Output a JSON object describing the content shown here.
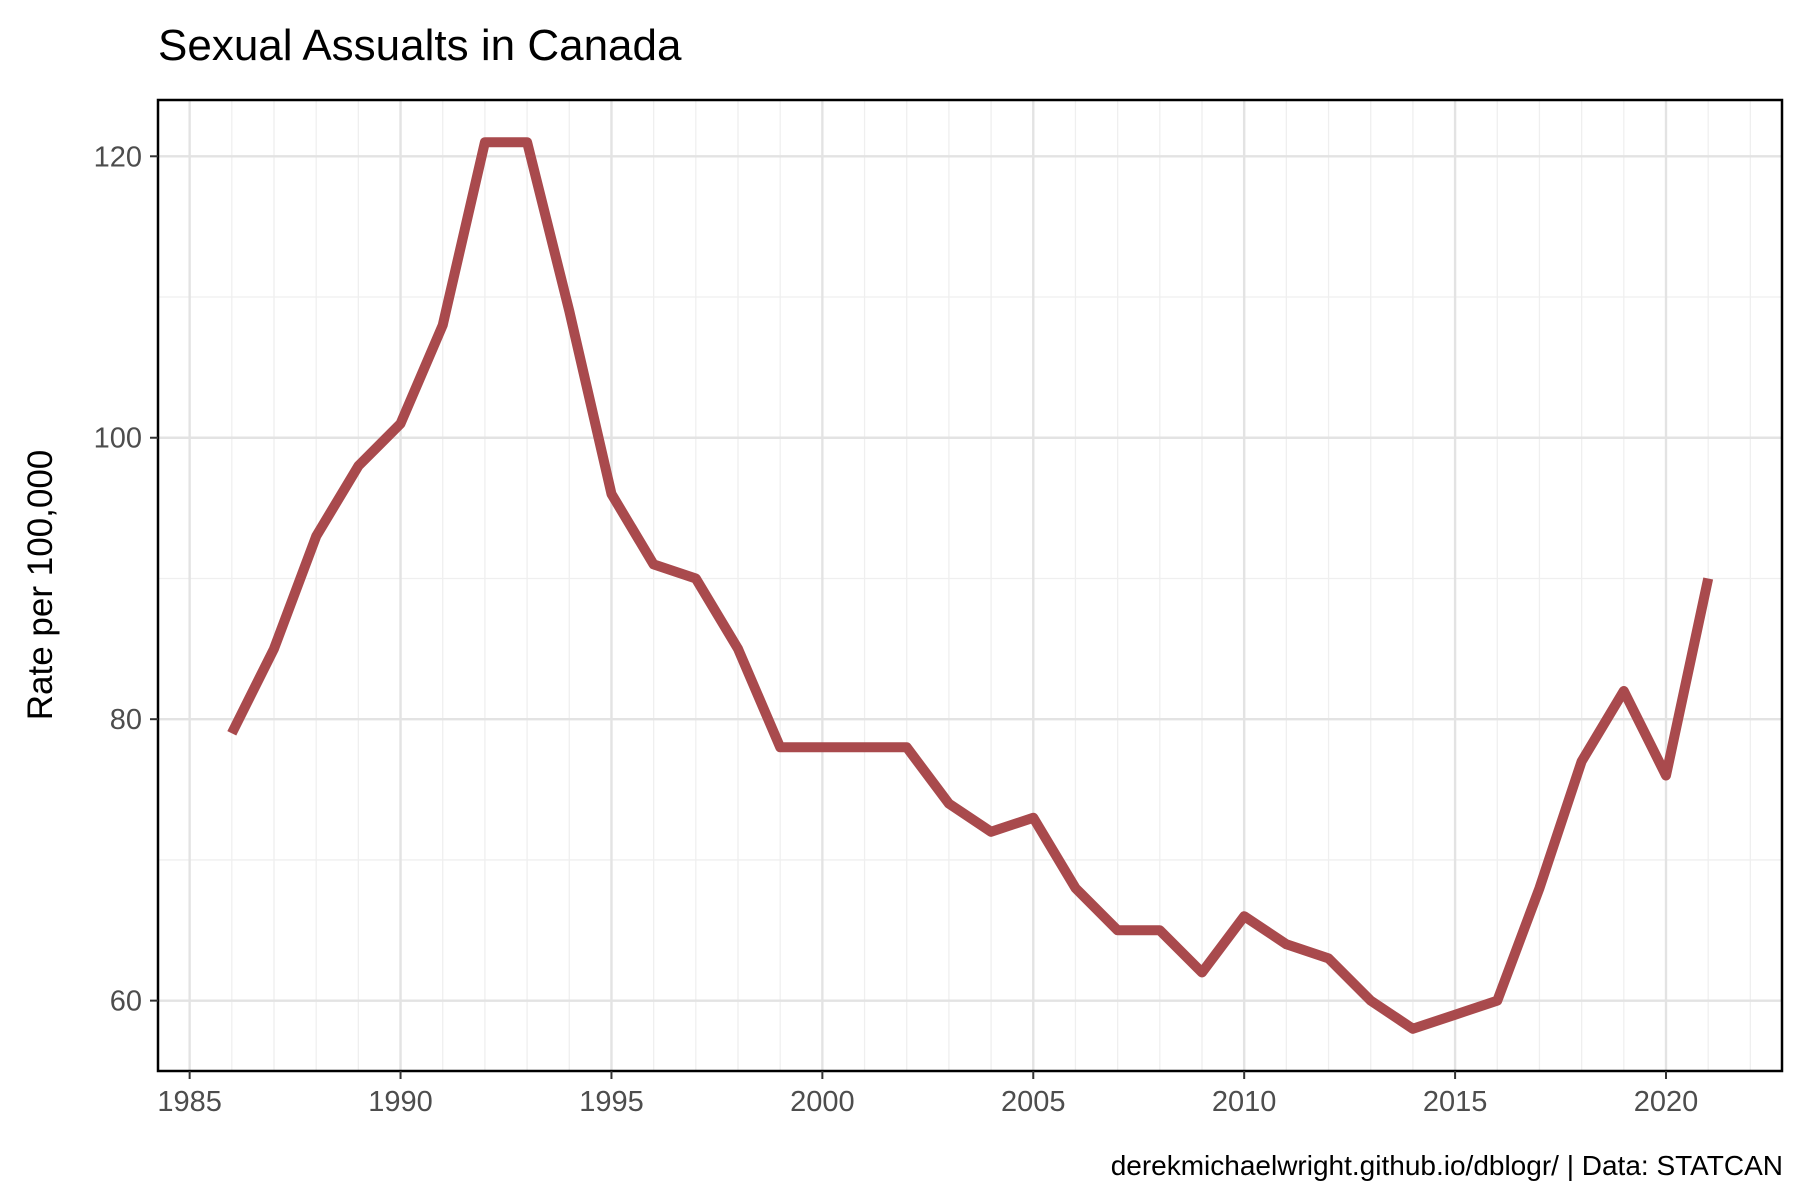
{
  "chart_data": {
    "type": "line",
    "title": "Sexual Assualts in Canada",
    "xlabel": "",
    "ylabel": "Rate per 100,000",
    "caption": "derekmichaelwright.github.io/dblogr/ | Data: STATCAN",
    "xlim": [
      1984.25,
      2022.75
    ],
    "ylim": [
      55,
      124
    ],
    "x_ticks": [
      1985,
      1990,
      1995,
      2000,
      2005,
      2010,
      2015,
      2020
    ],
    "y_ticks": [
      60,
      80,
      100,
      120
    ],
    "grid": true,
    "series": [
      {
        "color": "#a94a4d",
        "x": [
          1986,
          1987,
          1988,
          1989,
          1990,
          1991,
          1992,
          1993,
          1994,
          1995,
          1996,
          1997,
          1998,
          1999,
          2000,
          2001,
          2002,
          2003,
          2004,
          2005,
          2006,
          2007,
          2008,
          2009,
          2010,
          2011,
          2012,
          2013,
          2014,
          2015,
          2016,
          2017,
          2018,
          2019,
          2020,
          2021
        ],
        "y": [
          79,
          85,
          93,
          98,
          101,
          108,
          121,
          121,
          109,
          96,
          91,
          90,
          85,
          78,
          78,
          78,
          78,
          74,
          72,
          73,
          68,
          65,
          65,
          62,
          66,
          64,
          63,
          60,
          58,
          59,
          60,
          68,
          77,
          82,
          76,
          90
        ]
      }
    ]
  }
}
